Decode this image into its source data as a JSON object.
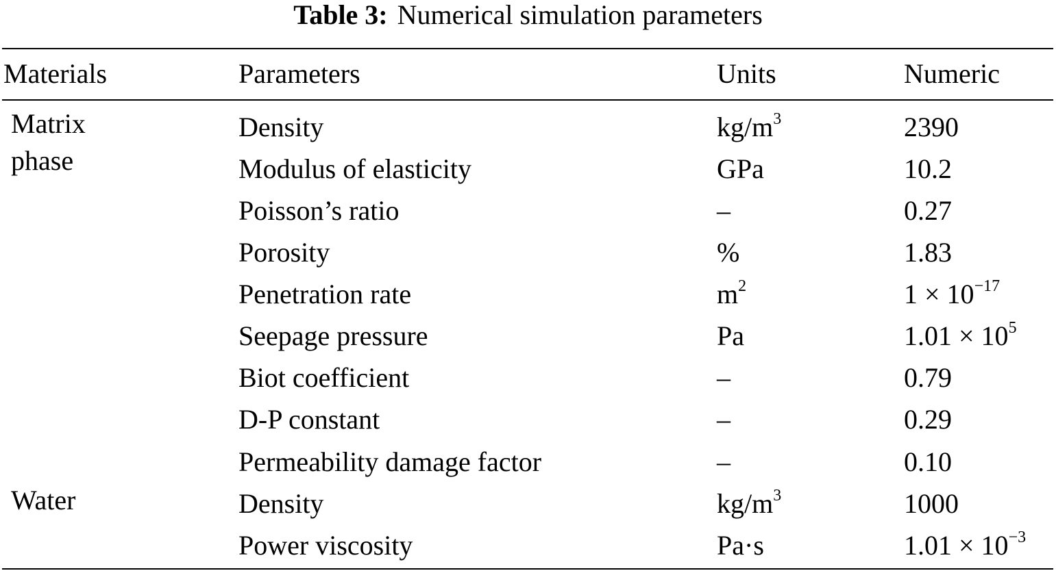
{
  "caption": {
    "label": "Table 3:",
    "text": "Numerical simulation parameters"
  },
  "table": {
    "headers": {
      "materials": "Materials",
      "parameters": "Parameters",
      "units": "Units",
      "numeric": "Numeric"
    },
    "groups": [
      {
        "material": "Matrix\nphase",
        "rows": [
          {
            "parameter": "Density",
            "unit_base": "kg/m",
            "unit_sup": "3",
            "num_base": "2390",
            "num_sup": ""
          },
          {
            "parameter": "Modulus of elasticity",
            "unit_base": "GPa",
            "unit_sup": "",
            "num_base": "10.2",
            "num_sup": ""
          },
          {
            "parameter": "Poisson’s ratio",
            "unit_base": "–",
            "unit_sup": "",
            "num_base": "0.27",
            "num_sup": ""
          },
          {
            "parameter": "Porosity",
            "unit_base": "%",
            "unit_sup": "",
            "num_base": "1.83",
            "num_sup": ""
          },
          {
            "parameter": "Penetration rate",
            "unit_base": "m",
            "unit_sup": "2",
            "num_base": "1 × 10",
            "num_sup": "−17"
          },
          {
            "parameter": "Seepage pressure",
            "unit_base": "Pa",
            "unit_sup": "",
            "num_base": "1.01 × 10",
            "num_sup": "5"
          },
          {
            "parameter": "Biot coefficient",
            "unit_base": "–",
            "unit_sup": "",
            "num_base": "0.79",
            "num_sup": ""
          },
          {
            "parameter": "D-P constant",
            "unit_base": "–",
            "unit_sup": "",
            "num_base": "0.29",
            "num_sup": ""
          },
          {
            "parameter": "Permeability damage factor",
            "unit_base": "–",
            "unit_sup": "",
            "num_base": "0.10",
            "num_sup": ""
          }
        ]
      },
      {
        "material": "Water",
        "rows": [
          {
            "parameter": "Density",
            "unit_base": "kg/m",
            "unit_sup": "3",
            "num_base": "1000",
            "num_sup": ""
          },
          {
            "parameter": "Power viscosity",
            "unit_base": "Pa·s",
            "unit_sup": "",
            "num_base": "1.01 × 10",
            "num_sup": "−3"
          }
        ]
      }
    ]
  }
}
